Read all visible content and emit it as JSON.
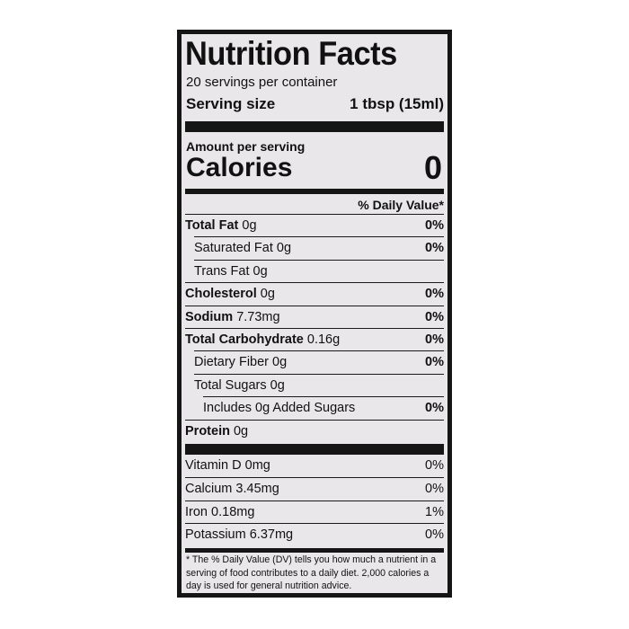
{
  "header": {
    "title": "Nutrition Facts",
    "servings": "20 servings per container",
    "serving_size_label": "Serving size",
    "serving_size": "1 tbsp (15ml)"
  },
  "calories": {
    "amount_label": "Amount per serving",
    "label": "Calories",
    "value": "0"
  },
  "daily_value_header": "% Daily Value*",
  "nutrients": [
    {
      "name": "Total Fat",
      "amount": "0g",
      "dv": "0%"
    },
    {
      "name": "Saturated Fat",
      "amount": "0g",
      "dv": "0%"
    },
    {
      "name": "Trans Fat",
      "amount": "0g"
    },
    {
      "name": "Cholesterol",
      "amount": "0g",
      "dv": "0%"
    },
    {
      "name": "Sodium",
      "amount": "7.73mg",
      "dv": "0%"
    },
    {
      "name": "Total Carbohydrate",
      "amount": "0.16g",
      "dv": "0%"
    },
    {
      "name": "Dietary Fiber",
      "amount": "0g",
      "dv": "0%"
    },
    {
      "name": "Total Sugars",
      "amount": "0g"
    },
    {
      "name": "Includes 0g Added Sugars",
      "dv": "0%"
    },
    {
      "name": "Protein",
      "amount": "0g"
    }
  ],
  "vitamins": [
    {
      "name": "Vitamin D",
      "amount": "0mg",
      "dv": "0%"
    },
    {
      "name": "Calcium",
      "amount": "3.45mg",
      "dv": "0%"
    },
    {
      "name": "Iron",
      "amount": "0.18mg",
      "dv": "1%"
    },
    {
      "name": "Potassium",
      "amount": "6.37mg",
      "dv": "0%"
    }
  ],
  "footnote": "* The % Daily Value (DV) tells you how much a nutrient in a serving of food contributes to a daily diet. 2,000 calories a day is used for general nutrition advice."
}
